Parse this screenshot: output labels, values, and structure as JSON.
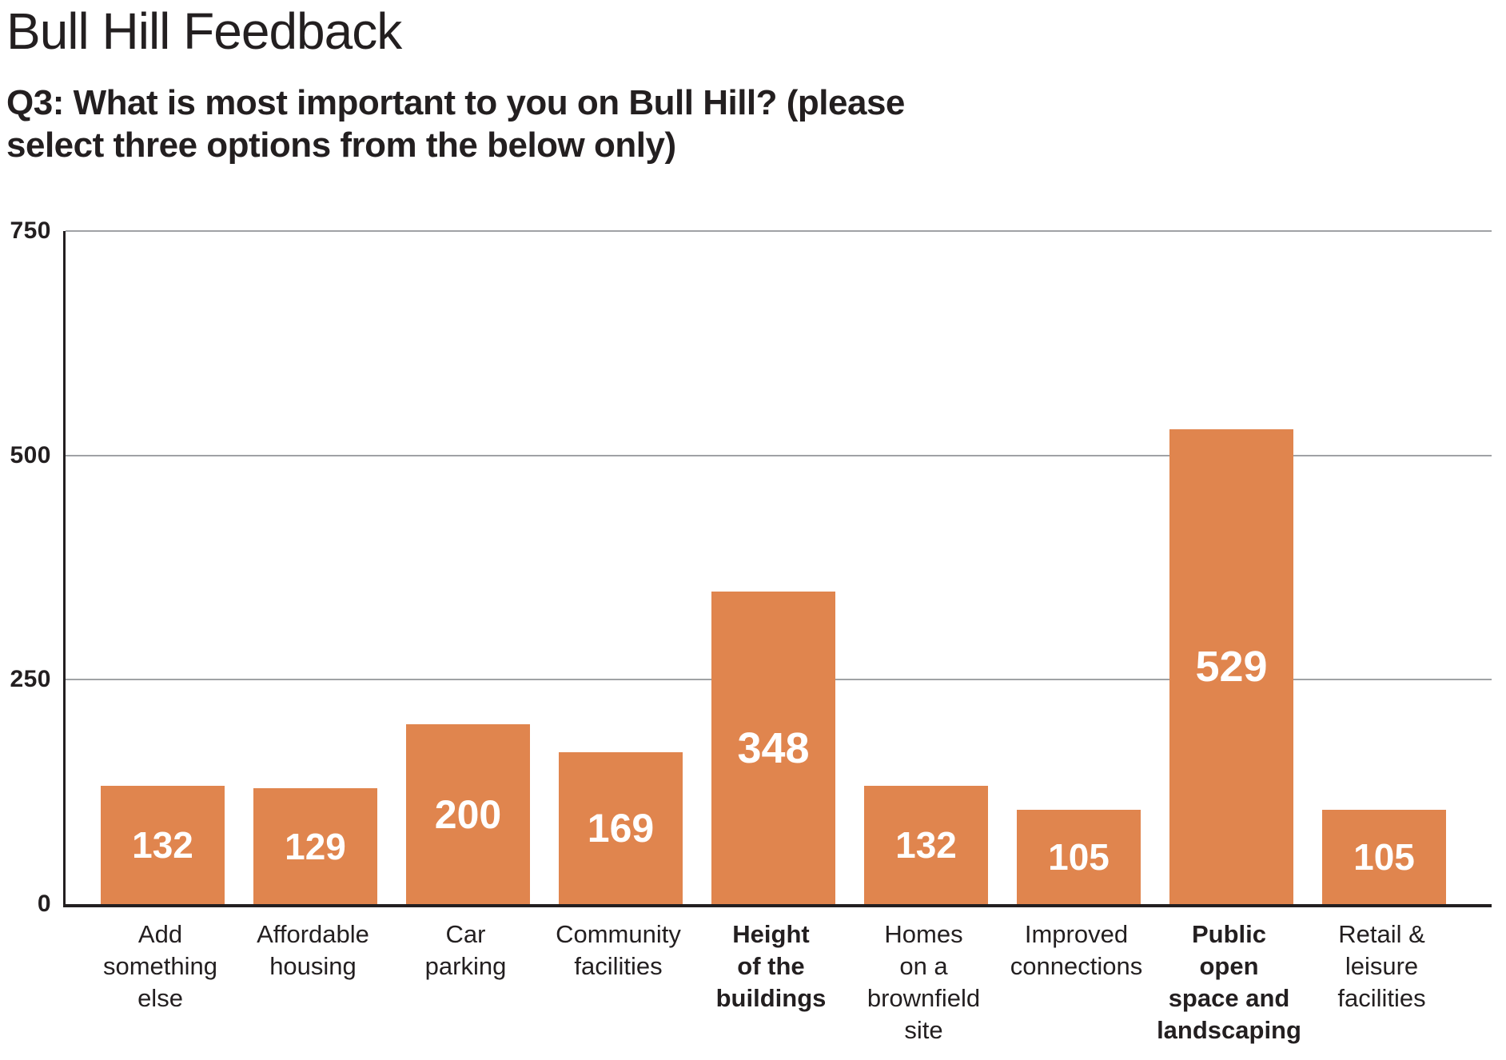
{
  "header": {
    "title": "Bull Hill Feedback",
    "subtitle": "Q3: What is most important to you on Bull Hill? (please\nselect three options from the below only)"
  },
  "chart_data": {
    "type": "bar",
    "title": "Bull Hill Feedback",
    "subtitle": "Q3: What is most important to you on Bull Hill? (please select three options from the below only)",
    "categories": [
      "Add something else",
      "Affordable housing",
      "Car parking",
      "Community facilities",
      "Height of the buildings",
      "Homes on a brownfield site",
      "Improved connections",
      "Public open space and landscaping",
      "Retail & leisure facilities"
    ],
    "category_label_lines": [
      [
        "Add",
        "something",
        "else"
      ],
      [
        "Affordable",
        "housing"
      ],
      [
        "Car",
        "parking"
      ],
      [
        "Community",
        "facilities"
      ],
      [
        "Height",
        "of the",
        "buildings"
      ],
      [
        "Homes",
        "on a",
        "brownfield",
        "site"
      ],
      [
        "Improved",
        "connections"
      ],
      [
        "Public",
        "open",
        "space and",
        "landscaping"
      ],
      [
        "Retail &",
        "leisure",
        "facilities"
      ]
    ],
    "values": [
      132,
      129,
      200,
      169,
      348,
      132,
      105,
      529,
      105
    ],
    "emphasized_categories": [
      "Height of the buildings",
      "Public open space and landscaping"
    ],
    "xlabel": "",
    "ylabel": "",
    "ylim": [
      0,
      750
    ],
    "yticks": [
      0,
      250,
      500,
      750
    ],
    "grid": true,
    "legend": false,
    "value_labels_inside_bars": true,
    "colors": {
      "bar": "#E0854E",
      "value_label": "#FFFFFF",
      "grid": "#A0A2A5",
      "axis": "#231F20",
      "text": "#231F20"
    }
  }
}
